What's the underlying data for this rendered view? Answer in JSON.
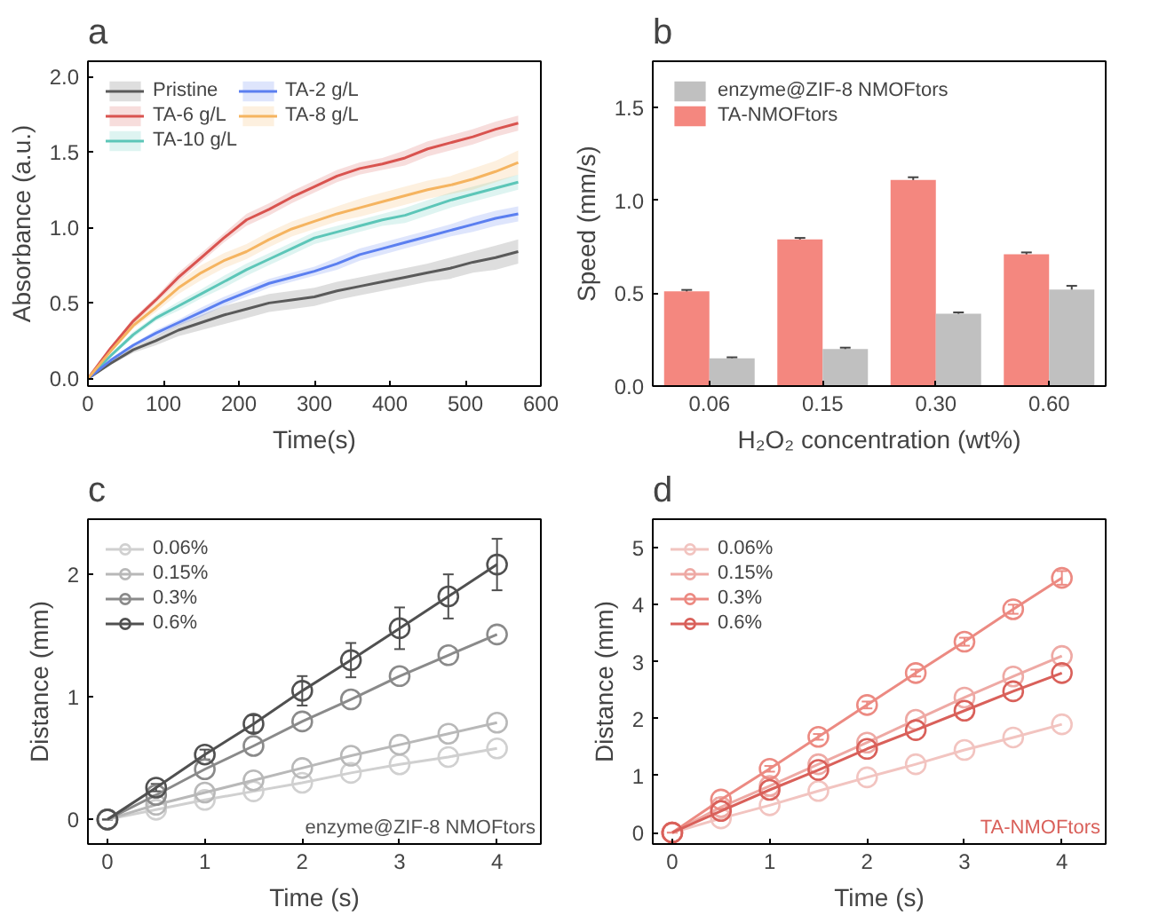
{
  "chart_data": [
    {
      "type": "line",
      "title": "a",
      "xlabel": "Time(s)",
      "ylabel": "Absorbance (a.u.)",
      "legend": "top left",
      "xlim": [
        0,
        600
      ],
      "ylim": [
        -0.05,
        2.1
      ],
      "xticks": [
        0,
        100,
        200,
        300,
        400,
        500,
        600
      ],
      "yticks": [
        {
          "value": 0,
          "label": "0.0"
        },
        0.5,
        {
          "value": 1,
          "label": "1.0"
        },
        1.5,
        {
          "value": 2,
          "label": "2.0"
        }
      ],
      "x": [
        0,
        30,
        60,
        90,
        120,
        150,
        180,
        210,
        240,
        270,
        300,
        330,
        360,
        390,
        420,
        450,
        480,
        510,
        540,
        570
      ],
      "series": [
        {
          "name": "Pristine",
          "color": "#5a5a5a",
          "values": [
            0,
            0.1,
            0.19,
            0.25,
            0.32,
            0.37,
            0.42,
            0.46,
            0.5,
            0.52,
            0.54,
            0.58,
            0.61,
            0.64,
            0.67,
            0.7,
            0.73,
            0.77,
            0.8,
            0.84
          ],
          "lower": [
            0,
            0.09,
            0.17,
            0.22,
            0.28,
            0.32,
            0.36,
            0.4,
            0.44,
            0.46,
            0.48,
            0.52,
            0.55,
            0.58,
            0.61,
            0.64,
            0.66,
            0.7,
            0.72,
            0.76
          ],
          "upper": [
            0,
            0.11,
            0.21,
            0.28,
            0.36,
            0.42,
            0.48,
            0.52,
            0.56,
            0.58,
            0.6,
            0.64,
            0.67,
            0.7,
            0.73,
            0.76,
            0.8,
            0.84,
            0.88,
            0.92
          ]
        },
        {
          "name": "TA-6 g/L",
          "color": "#d9534f",
          "values": [
            0,
            0.2,
            0.38,
            0.52,
            0.67,
            0.8,
            0.93,
            1.05,
            1.12,
            1.2,
            1.27,
            1.34,
            1.39,
            1.42,
            1.46,
            1.52,
            1.56,
            1.6,
            1.65,
            1.69
          ],
          "lower": [
            0,
            0.19,
            0.36,
            0.5,
            0.64,
            0.77,
            0.9,
            1.01,
            1.08,
            1.16,
            1.23,
            1.3,
            1.35,
            1.38,
            1.41,
            1.47,
            1.51,
            1.55,
            1.6,
            1.64
          ],
          "upper": [
            0,
            0.21,
            0.4,
            0.54,
            0.7,
            0.83,
            0.96,
            1.09,
            1.16,
            1.24,
            1.31,
            1.38,
            1.43,
            1.46,
            1.51,
            1.57,
            1.61,
            1.65,
            1.7,
            1.74
          ]
        },
        {
          "name": "TA-10 g/L",
          "color": "#5cc6b8",
          "values": [
            0,
            0.15,
            0.29,
            0.4,
            0.48,
            0.56,
            0.64,
            0.72,
            0.79,
            0.86,
            0.93,
            0.97,
            1.01,
            1.05,
            1.08,
            1.13,
            1.18,
            1.22,
            1.26,
            1.3
          ],
          "lower": [
            0,
            0.14,
            0.27,
            0.38,
            0.45,
            0.53,
            0.6,
            0.68,
            0.75,
            0.82,
            0.89,
            0.93,
            0.97,
            1.01,
            1.03,
            1.08,
            1.13,
            1.17,
            1.21,
            1.25
          ],
          "upper": [
            0,
            0.16,
            0.31,
            0.42,
            0.51,
            0.59,
            0.68,
            0.76,
            0.83,
            0.9,
            0.97,
            1.01,
            1.05,
            1.09,
            1.13,
            1.18,
            1.23,
            1.27,
            1.31,
            1.35
          ]
        },
        {
          "name": "TA-2 g/L",
          "color": "#5b7ff0",
          "values": [
            0,
            0.12,
            0.22,
            0.3,
            0.37,
            0.44,
            0.51,
            0.57,
            0.63,
            0.67,
            0.71,
            0.76,
            0.82,
            0.86,
            0.9,
            0.94,
            0.98,
            1.02,
            1.06,
            1.09
          ],
          "lower": [
            0,
            0.11,
            0.21,
            0.28,
            0.35,
            0.41,
            0.48,
            0.54,
            0.6,
            0.64,
            0.68,
            0.72,
            0.78,
            0.82,
            0.86,
            0.9,
            0.94,
            0.97,
            1.01,
            1.04
          ],
          "upper": [
            0,
            0.13,
            0.23,
            0.32,
            0.39,
            0.47,
            0.54,
            0.6,
            0.66,
            0.7,
            0.74,
            0.8,
            0.86,
            0.9,
            0.94,
            0.98,
            1.02,
            1.07,
            1.11,
            1.14
          ]
        },
        {
          "name": "TA-8 g/L",
          "color": "#f5b460",
          "values": [
            0,
            0.18,
            0.35,
            0.47,
            0.6,
            0.7,
            0.78,
            0.84,
            0.92,
            0.99,
            1.04,
            1.09,
            1.13,
            1.17,
            1.21,
            1.25,
            1.28,
            1.32,
            1.37,
            1.43
          ],
          "lower": [
            0,
            0.17,
            0.33,
            0.44,
            0.56,
            0.65,
            0.73,
            0.79,
            0.87,
            0.94,
            0.99,
            1.04,
            1.07,
            1.11,
            1.15,
            1.19,
            1.22,
            1.25,
            1.3,
            1.35
          ],
          "upper": [
            0,
            0.19,
            0.37,
            0.5,
            0.64,
            0.75,
            0.83,
            0.89,
            0.97,
            1.04,
            1.09,
            1.14,
            1.19,
            1.23,
            1.27,
            1.31,
            1.34,
            1.39,
            1.44,
            1.51
          ]
        }
      ]
    },
    {
      "type": "bar",
      "title": "b",
      "xlabel": "H₂O₂ concentration (wt%)",
      "ylabel": "Speed (mm/s)",
      "legend": "top left",
      "ylim": [
        0,
        1.75
      ],
      "yticks": [
        {
          "value": 0,
          "label": "0.0"
        },
        0.5,
        {
          "value": 1,
          "label": "1.0"
        },
        1.5
      ],
      "categories": [
        "0.06",
        "0.15",
        "0.30",
        "0.60"
      ],
      "series": [
        {
          "name": "TA-NMOFtors",
          "color": "#f4877f",
          "values": [
            0.51,
            0.79,
            1.11,
            0.71
          ],
          "errors": [
            0.008,
            0.008,
            0.015,
            0.01
          ]
        },
        {
          "name": "enzyme@ZIF-8 NMOFtors",
          "color": "#c0c0c0",
          "values": [
            0.15,
            0.2,
            0.39,
            0.52
          ],
          "errors": [
            0.005,
            0.007,
            0.007,
            0.02
          ]
        }
      ]
    },
    {
      "type": "line",
      "title": "c",
      "xlabel": "Time (s)",
      "ylabel": "Distance (mm)",
      "legend": "top left",
      "marker": "circle",
      "xlim": [
        -0.2,
        4.45
      ],
      "ylim": [
        -0.2,
        2.45
      ],
      "xticks": [
        0,
        1,
        2,
        3,
        4
      ],
      "yticks": [
        0,
        1,
        2
      ],
      "annotations": [
        "enzyme@ZIF-8 NMOFtors"
      ],
      "x": [
        0,
        0.5,
        1,
        1.5,
        2,
        2.5,
        3,
        3.5,
        4
      ],
      "series": [
        {
          "name": "0.06%",
          "color": "#d0d0d0",
          "values": [
            0,
            0.08,
            0.16,
            0.23,
            0.3,
            0.38,
            0.45,
            0.51,
            0.58
          ]
        },
        {
          "name": "0.15%",
          "color": "#b8b8b8",
          "values": [
            0,
            0.12,
            0.22,
            0.32,
            0.42,
            0.52,
            0.61,
            0.7,
            0.79
          ]
        },
        {
          "name": "0.3%",
          "color": "#8a8a8a",
          "values": [
            0,
            0.2,
            0.41,
            0.6,
            0.8,
            0.98,
            1.17,
            1.34,
            1.51
          ]
        },
        {
          "name": "0.6%",
          "color": "#505050",
          "values": [
            0,
            0.26,
            0.53,
            0.78,
            1.05,
            1.3,
            1.56,
            1.82,
            2.08
          ],
          "errors": [
            0,
            0.03,
            0.04,
            0.07,
            0.12,
            0.14,
            0.17,
            0.18,
            0.21
          ]
        }
      ]
    },
    {
      "type": "line",
      "title": "d",
      "xlabel": "Time (s)",
      "ylabel": "Distance (mm)",
      "legend": "top left",
      "marker": "circle",
      "xlim": [
        -0.2,
        4.45
      ],
      "ylim": [
        -0.2,
        5.5
      ],
      "xticks": [
        0,
        1,
        2,
        3,
        4
      ],
      "yticks": [
        0,
        1,
        2,
        3,
        4,
        5
      ],
      "annotations": [
        "TA-NMOFtors"
      ],
      "x": [
        0,
        0.5,
        1,
        1.5,
        2,
        2.5,
        3,
        3.5,
        4
      ],
      "series": [
        {
          "name": "0.06%",
          "color": "#f2c4c0",
          "values": [
            0,
            0.25,
            0.48,
            0.73,
            0.97,
            1.2,
            1.45,
            1.67,
            1.9
          ]
        },
        {
          "name": "0.15%",
          "color": "#eea9a4",
          "values": [
            0,
            0.45,
            0.82,
            1.2,
            1.58,
            1.98,
            2.37,
            2.74,
            3.1
          ]
        },
        {
          "name": "0.3%",
          "color": "#ec8a82",
          "values": [
            0,
            0.58,
            1.12,
            1.68,
            2.24,
            2.8,
            3.35,
            3.92,
            4.47
          ],
          "errors": [
            0,
            0.03,
            0.05,
            0.05,
            0.06,
            0.06,
            0.07,
            0.08,
            0.12
          ]
        },
        {
          "name": "0.6%",
          "color": "#d9605a",
          "values": [
            0,
            0.38,
            0.75,
            1.1,
            1.47,
            1.8,
            2.14,
            2.48,
            2.8
          ]
        }
      ]
    }
  ]
}
